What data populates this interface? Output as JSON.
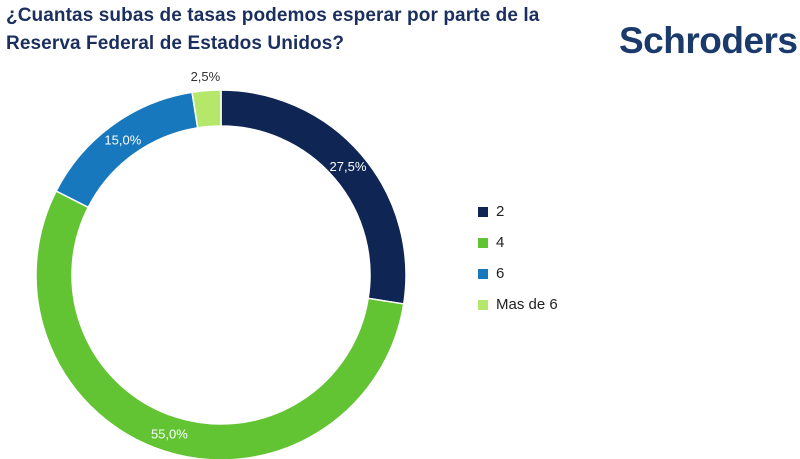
{
  "header": {
    "title": "¿Cuantas subas de tasas podemos esperar por parte de la Reserva Federal de Estados Unidos?",
    "brand": "Schroders"
  },
  "colors": {
    "title": "#1b2f5e",
    "brand": "#1a3a6b"
  },
  "chart_data": {
    "type": "pie",
    "style": "donut",
    "categories": [
      "2",
      "4",
      "6",
      "Mas de 6"
    ],
    "values": [
      27.5,
      55.0,
      15.0,
      2.5
    ],
    "labels": [
      "27,5%",
      "55,0%",
      "15,0%",
      "2,5%"
    ],
    "colors": [
      "#0f2554",
      "#62c333",
      "#1878be",
      "#b5e86a"
    ],
    "start": "top",
    "direction": "clockwise",
    "legend": "right"
  }
}
